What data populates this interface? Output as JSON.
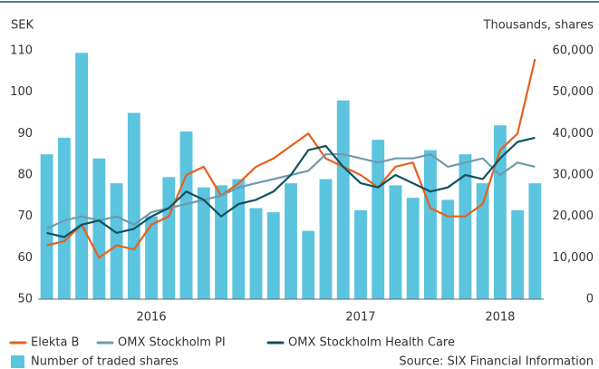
{
  "chart_data": {
    "type": "bar-line",
    "ylabel": "SEK",
    "y2label": "Thousands, shares",
    "annotation": "Source: SIX Financial Information",
    "categories": [
      null,
      null,
      null,
      null,
      null,
      null,
      "2016",
      null,
      null,
      null,
      null,
      null,
      null,
      null,
      null,
      null,
      null,
      null,
      "2017",
      null,
      null,
      null,
      null,
      null,
      null,
      null,
      "2018",
      null,
      null
    ],
    "ylim": [
      50,
      110
    ],
    "yticks": [
      50,
      60,
      70,
      80,
      90,
      100,
      110
    ],
    "y2lim": [
      0,
      60000
    ],
    "y2ticks": [
      0,
      {
        "value": 10000,
        "label": "10,000"
      },
      {
        "value": 20000,
        "label": "20,000"
      },
      {
        "value": 30000,
        "label": "30,000"
      },
      {
        "value": 40000,
        "label": "40,000"
      },
      {
        "value": 50000,
        "label": "50,000"
      },
      {
        "value": 60000,
        "label": "60,000"
      }
    ],
    "grid": false,
    "series": [
      {
        "name": "Elekta B",
        "type": "line",
        "axis": "y",
        "color": "#e8601c",
        "values": [
          63,
          64,
          68,
          60,
          63,
          62,
          68,
          70,
          80,
          82,
          75,
          78,
          82,
          84,
          87,
          90,
          84,
          82,
          80,
          77,
          82,
          83,
          72,
          70,
          70,
          73,
          86,
          90,
          108
        ]
      },
      {
        "name": "OMX Stockholm PI",
        "type": "line",
        "axis": "y",
        "color": "#6f9aae",
        "values": [
          67,
          69,
          70,
          69,
          70,
          68,
          71,
          72,
          73,
          74,
          75,
          77,
          78,
          79,
          80,
          81,
          85,
          85,
          84,
          83,
          84,
          84,
          85,
          82,
          83,
          84,
          80,
          83,
          82
        ]
      },
      {
        "name": "OMX Stockholm Health Care",
        "type": "line",
        "axis": "y",
        "color": "#0f5360",
        "values": [
          66,
          65,
          68,
          69,
          66,
          67,
          70,
          72,
          76,
          74,
          70,
          73,
          74,
          76,
          80,
          86,
          87,
          82,
          78,
          77,
          80,
          78,
          76,
          77,
          80,
          79,
          84,
          88,
          89
        ]
      },
      {
        "name": "Number of traded shares",
        "type": "bar",
        "axis": "y2",
        "color": "#5bc4de",
        "values": [
          35000,
          39000,
          59500,
          34000,
          28000,
          45000,
          20000,
          29500,
          40500,
          27000,
          27500,
          29000,
          22000,
          21000,
          28000,
          16500,
          29000,
          48000,
          21500,
          38500,
          27500,
          24500,
          36000,
          24000,
          35000,
          28000,
          42000,
          21500,
          28000
        ]
      }
    ]
  }
}
